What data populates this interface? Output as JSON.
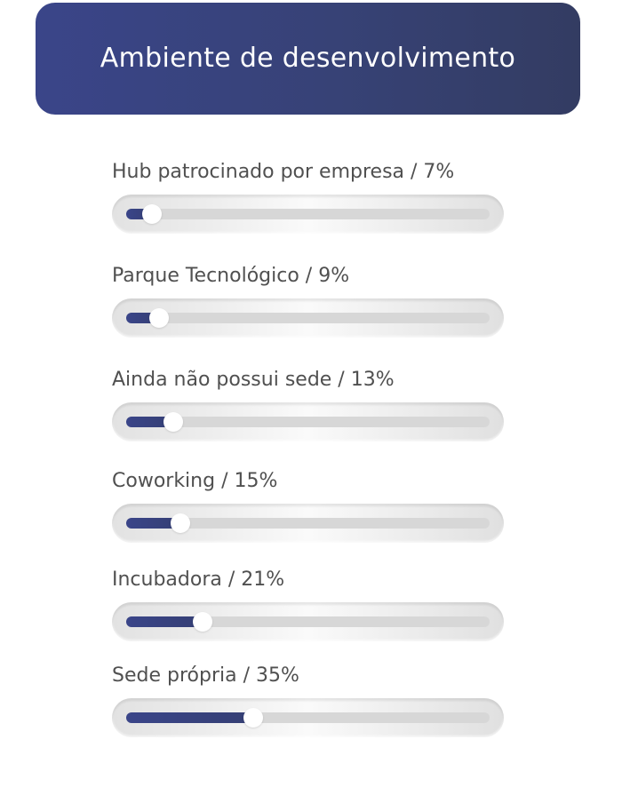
{
  "header": {
    "title": "Ambiente de desenvolvimento"
  },
  "colors": {
    "header_bg": "#374276",
    "bar_fill": "#3a4589",
    "track": "#d7d7d7",
    "label_text": "#505050"
  },
  "chart_data": {
    "type": "bar",
    "title": "Ambiente de desenvolvimento",
    "xlabel": "",
    "ylabel": "",
    "categories": [
      "Hub patrocinado por empresa",
      "Parque Tecnológico",
      "Ainda não possui sede",
      "Coworking",
      "Incubadora",
      "Sede própria"
    ],
    "values": [
      7,
      9,
      13,
      15,
      21,
      35
    ],
    "labels": [
      "Hub patrocinado por empresa / 7%",
      "Parque Tecnológico / 9%",
      "Ainda não possui sede / 13%",
      "Coworking / 15%",
      "Incubadora / 21%",
      "Sede própria / 35%"
    ],
    "unit": "%",
    "xlim": [
      0,
      100
    ]
  }
}
